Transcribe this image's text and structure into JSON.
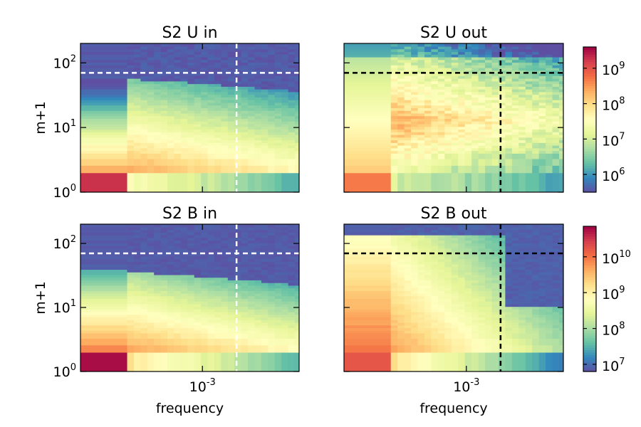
{
  "chart_data": {
    "type": "heatmap",
    "xlabel": "frequency",
    "ylabel": "m+1",
    "x_scale": "log",
    "y_scale": "log",
    "xlim": [
      0.00015,
      0.0045
    ],
    "ylim": [
      1,
      200
    ],
    "x_rows": 9,
    "ref_frequency": 0.0017,
    "ref_m_plus_1": 70,
    "x_tick": {
      "base": "10",
      "exp": "-3"
    },
    "y_ticks": [
      {
        "value": 1,
        "base": "10",
        "exp": "0"
      },
      {
        "value": 10,
        "base": "10",
        "exp": "1"
      },
      {
        "value": 100,
        "base": "10",
        "exp": "2"
      }
    ],
    "panels": [
      {
        "id": "u-in",
        "title": "S2 U in",
        "style": "u_in",
        "line_color": "#ffffff",
        "has_ylabel": true,
        "has_xlabel": false
      },
      {
        "id": "u-out",
        "title": "S2 U out",
        "style": "u_out",
        "line_color": "#000000",
        "has_ylabel": false,
        "has_xlabel": false
      },
      {
        "id": "b-in",
        "title": "S2 B in",
        "style": "b_in",
        "line_color": "#ffffff",
        "has_ylabel": true,
        "has_xlabel": true
      },
      {
        "id": "b-out",
        "title": "S2 B out",
        "style": "b_out",
        "line_color": "#000000",
        "has_ylabel": false,
        "has_xlabel": true
      }
    ],
    "colorbars": [
      {
        "id": "top",
        "range_exp": [
          5.5,
          9.6
        ],
        "ticks": [
          {
            "value": 6,
            "base": "10",
            "exp": "6"
          },
          {
            "value": 7,
            "base": "10",
            "exp": "7"
          },
          {
            "value": 8,
            "base": "10",
            "exp": "8"
          },
          {
            "value": 9,
            "base": "10",
            "exp": "9"
          }
        ]
      },
      {
        "id": "bottom",
        "range_exp": [
          6.8,
          10.85
        ],
        "ticks": [
          {
            "value": 7,
            "base": "10",
            "exp": "7"
          },
          {
            "value": 8,
            "base": "10",
            "exp": "8"
          },
          {
            "value": 9,
            "base": "10",
            "exp": "9"
          },
          {
            "value": 10,
            "base": "10",
            "exp": "10"
          }
        ]
      }
    ],
    "colormap": "Spectral_r"
  }
}
